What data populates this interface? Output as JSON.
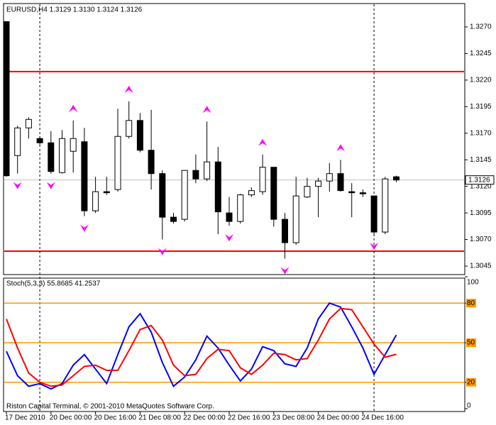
{
  "chart_data": [
    {
      "type": "candlestick",
      "title": "EURUSD,H4  1.3129 1.3130 1.3124 1.3126",
      "categories": [
        "17 Dec 2010",
        null,
        null,
        null,
        "20 Dec 00:00",
        null,
        null,
        null,
        "20 Dec 16:00",
        null,
        null,
        null,
        "21 Dec 08:00",
        null,
        null,
        null,
        "22 Dec 00:00",
        null,
        null,
        null,
        "22 Dec 16:00",
        null,
        null,
        null,
        "23 Dec 08:00",
        null,
        null,
        null,
        "24 Dec 00:00",
        null,
        null,
        null,
        "24 Dec 16:00",
        null,
        null,
        null
      ],
      "open": [
        1.3275,
        1.3149,
        1.3175,
        1.3165,
        1.3161,
        1.3133,
        1.3153,
        1.3162,
        1.3097,
        1.3115,
        1.3117,
        1.3167,
        1.3182,
        1.3154,
        1.3132,
        1.3091,
        1.3089,
        1.3135,
        1.3127,
        1.3143,
        1.3095,
        1.3087,
        1.3112,
        1.3115,
        1.3138,
        1.3089,
        1.3067,
        1.311,
        1.312,
        1.3125,
        1.3132,
        1.3115,
        1.3114,
        1.3111,
        1.3077,
        1.3129
      ],
      "high": [
        1.3275,
        1.3177,
        1.3185,
        1.3167,
        1.3172,
        1.3173,
        1.3182,
        1.3175,
        1.3129,
        1.3129,
        1.3193,
        1.32,
        1.3189,
        1.3192,
        1.3135,
        1.3095,
        1.3135,
        1.315,
        1.3181,
        1.3157,
        1.311,
        1.3113,
        1.3119,
        1.315,
        1.3138,
        1.3095,
        1.3129,
        1.3128,
        1.3128,
        1.3142,
        1.3145,
        1.3123,
        1.3117,
        1.3111,
        1.3129,
        1.313
      ],
      "low": [
        1.3129,
        1.3132,
        1.3165,
        1.3159,
        1.3132,
        1.3132,
        1.3133,
        1.3092,
        1.3095,
        1.3112,
        1.3115,
        1.3165,
        1.3152,
        1.3117,
        1.307,
        1.3085,
        1.3087,
        1.3123,
        1.3125,
        1.3075,
        1.3083,
        1.3085,
        1.311,
        1.3112,
        1.3082,
        1.3052,
        1.3065,
        1.3109,
        1.3091,
        1.3115,
        1.3115,
        1.3091,
        1.311,
        1.3075,
        1.3075,
        1.3124
      ],
      "close": [
        1.313,
        1.3175,
        1.3183,
        1.3161,
        1.3134,
        1.3165,
        1.3165,
        1.3097,
        1.3115,
        1.3114,
        1.3167,
        1.3182,
        1.3154,
        1.3132,
        1.3091,
        1.3087,
        1.3135,
        1.3127,
        1.3143,
        1.3096,
        1.3087,
        1.3112,
        1.3116,
        1.3138,
        1.3089,
        1.3067,
        1.3111,
        1.312,
        1.3125,
        1.3132,
        1.3116,
        1.3114,
        1.3113,
        1.3077,
        1.3127,
        1.3126
      ],
      "ylim": [
        1.3037,
        1.3292
      ],
      "yticks": [
        {
          "value": 1.327,
          "label": "1.3270"
        },
        {
          "value": 1.3245,
          "label": "1.3245"
        },
        {
          "value": 1.322,
          "label": "1.3220"
        },
        {
          "value": 1.3195,
          "label": "1.3195"
        },
        {
          "value": 1.317,
          "label": "1.3170"
        },
        {
          "value": 1.3145,
          "label": "1.3145"
        },
        {
          "value": 1.312,
          "label": "1.3120"
        },
        {
          "value": 1.3095,
          "label": "1.3095"
        },
        {
          "value": 1.307,
          "label": "1.3070"
        },
        {
          "value": 1.3045,
          "label": "1.3045"
        }
      ],
      "hlines": [
        1.3228,
        1.3059
      ],
      "hline_color": "#ff0000",
      "price_line_color": "#c0c0c0",
      "up_fractals": [
        6,
        11,
        18,
        23,
        30
      ],
      "down_fractals": [
        1,
        4,
        7,
        14,
        20,
        25,
        33
      ],
      "fractal_color": "#ff00ff",
      "vlines": [
        3,
        33
      ]
    },
    {
      "type": "line",
      "title": "Stoch(5,3,3) 55.8685 41.2537",
      "series": [
        {
          "name": "Main",
          "color": "#0000ff",
          "values": [
            43.5,
            25,
            17,
            19,
            15,
            19,
            33,
            41,
            30,
            19,
            41,
            62,
            72,
            58,
            35,
            17,
            24,
            37,
            55,
            46,
            33,
            21,
            30,
            47,
            44,
            34,
            32,
            46,
            68,
            80,
            77,
            62,
            46,
            26,
            41,
            55.8685
          ]
        },
        {
          "name": "Signal",
          "color": "#ff0000",
          "values": [
            68,
            46,
            27,
            20,
            17,
            18,
            25,
            32,
            33,
            29,
            29,
            44,
            60,
            63,
            52,
            33,
            25,
            26,
            38,
            45,
            44,
            31,
            26,
            33,
            42,
            41,
            37,
            38,
            52,
            68,
            76,
            75,
            62,
            49,
            39,
            41.2537
          ]
        }
      ],
      "ylim": [
        0,
        100
      ],
      "yticks": [
        100,
        80,
        50,
        20,
        0
      ],
      "levels": [
        80,
        50,
        20
      ],
      "level_color": "#ff9900",
      "footer": "Riston Capital Terminal, © 2001-2010 MetaQuotes Software Corp."
    }
  ]
}
